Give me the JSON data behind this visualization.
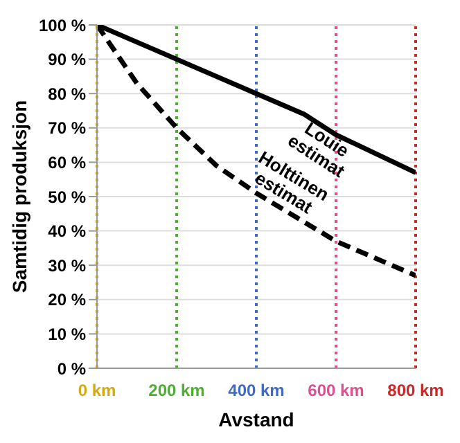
{
  "chart_data": {
    "type": "line",
    "xlabel": "Avstand",
    "ylabel": "Samtidig produksjon",
    "xlim": [
      0,
      800
    ],
    "xticks": [
      {
        "value": 0,
        "label": "0 km"
      },
      {
        "value": 200,
        "label": "200 km"
      },
      {
        "value": 400,
        "label": "400 km"
      },
      {
        "value": 600,
        "label": "600 km"
      },
      {
        "value": 800,
        "label": "800 km"
      }
    ],
    "ylim": [
      0,
      100
    ],
    "yticks": [
      {
        "value": 0,
        "label": "0 %"
      },
      {
        "value": 10,
        "label": "10 %"
      },
      {
        "value": 20,
        "label": "20 %"
      },
      {
        "value": 30,
        "label": "30 %"
      },
      {
        "value": 40,
        "label": "40 %"
      },
      {
        "value": 50,
        "label": "50 %"
      },
      {
        "value": 60,
        "label": "60 %"
      },
      {
        "value": 70,
        "label": "70 %"
      },
      {
        "value": 80,
        "label": "80 %"
      },
      {
        "value": 90,
        "label": "90 %"
      },
      {
        "value": 100,
        "label": "100 %"
      }
    ],
    "grid": "y",
    "marker": "none",
    "ref_lines": [
      {
        "axis": "x",
        "value": 0,
        "color": "#d4aa10",
        "line_style": "dotted"
      },
      {
        "axis": "x",
        "value": 200,
        "color": "#4caf30",
        "line_style": "dotted"
      },
      {
        "axis": "x",
        "value": 400,
        "color": "#3f6ac8",
        "line_style": "dotted"
      },
      {
        "axis": "x",
        "value": 600,
        "color": "#e0508f",
        "line_style": "dotted"
      },
      {
        "axis": "x",
        "value": 800,
        "color": "#c82828",
        "line_style": "dotted"
      }
    ],
    "series": [
      {
        "name": "Louie estimat",
        "color": "#000000",
        "line_style": "solid",
        "x": [
          0,
          200,
          400,
          520,
          600,
          800
        ],
        "values": [
          100,
          90,
          80,
          74,
          68,
          57
        ]
      },
      {
        "name": "Holttinen estimat",
        "color": "#000000",
        "line_style": "dashed",
        "x": [
          0,
          100,
          200,
          300,
          400,
          500,
          600,
          700,
          800
        ],
        "values": [
          100,
          83,
          70,
          59,
          51,
          44,
          37,
          32,
          27
        ]
      }
    ]
  }
}
